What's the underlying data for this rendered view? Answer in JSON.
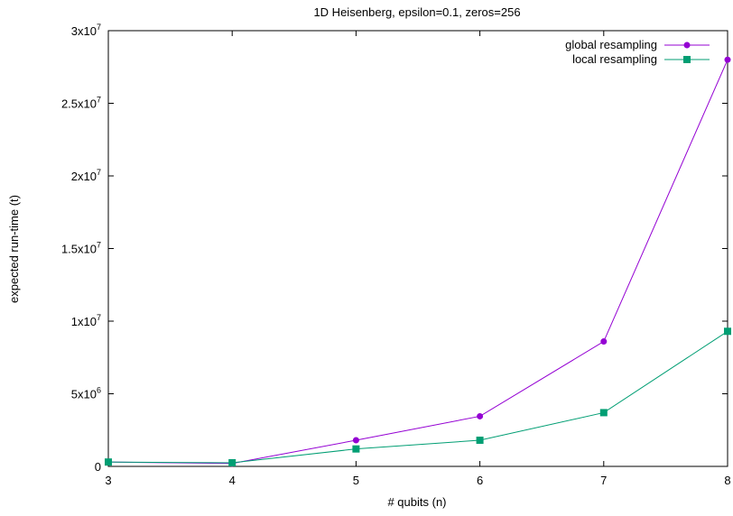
{
  "chart_data": {
    "type": "line",
    "title": "1D Heisenberg, epsilon=0.1, zeros=256",
    "xlabel": "# qubits (n)",
    "ylabel": "expected run-time (t)",
    "xlim": [
      3,
      8
    ],
    "ylim": [
      0,
      30000000
    ],
    "x_ticks": [
      3,
      4,
      5,
      6,
      7,
      8
    ],
    "y_ticks": [
      {
        "value": 0,
        "mantissa": "0",
        "exp": ""
      },
      {
        "value": 5000000,
        "mantissa": "5x10",
        "exp": "6"
      },
      {
        "value": 10000000,
        "mantissa": "1x10",
        "exp": "7"
      },
      {
        "value": 15000000,
        "mantissa": "1.5x10",
        "exp": "7"
      },
      {
        "value": 20000000,
        "mantissa": "2x10",
        "exp": "7"
      },
      {
        "value": 25000000,
        "mantissa": "2.5x10",
        "exp": "7"
      },
      {
        "value": 30000000,
        "mantissa": "3x10",
        "exp": "7"
      }
    ],
    "grid": false,
    "legend_position": "top-right",
    "series": [
      {
        "name": "global resampling",
        "color": "#9400d3",
        "marker": "circle",
        "x": [
          3,
          4,
          5,
          6,
          7,
          8
        ],
        "y": [
          300000,
          200000,
          1800000,
          3450000,
          8600000,
          28000000
        ]
      },
      {
        "name": "local resampling",
        "color": "#009e73",
        "marker": "square",
        "x": [
          3,
          4,
          5,
          6,
          7,
          8
        ],
        "y": [
          300000,
          250000,
          1200000,
          1800000,
          3700000,
          9300000
        ]
      }
    ]
  }
}
